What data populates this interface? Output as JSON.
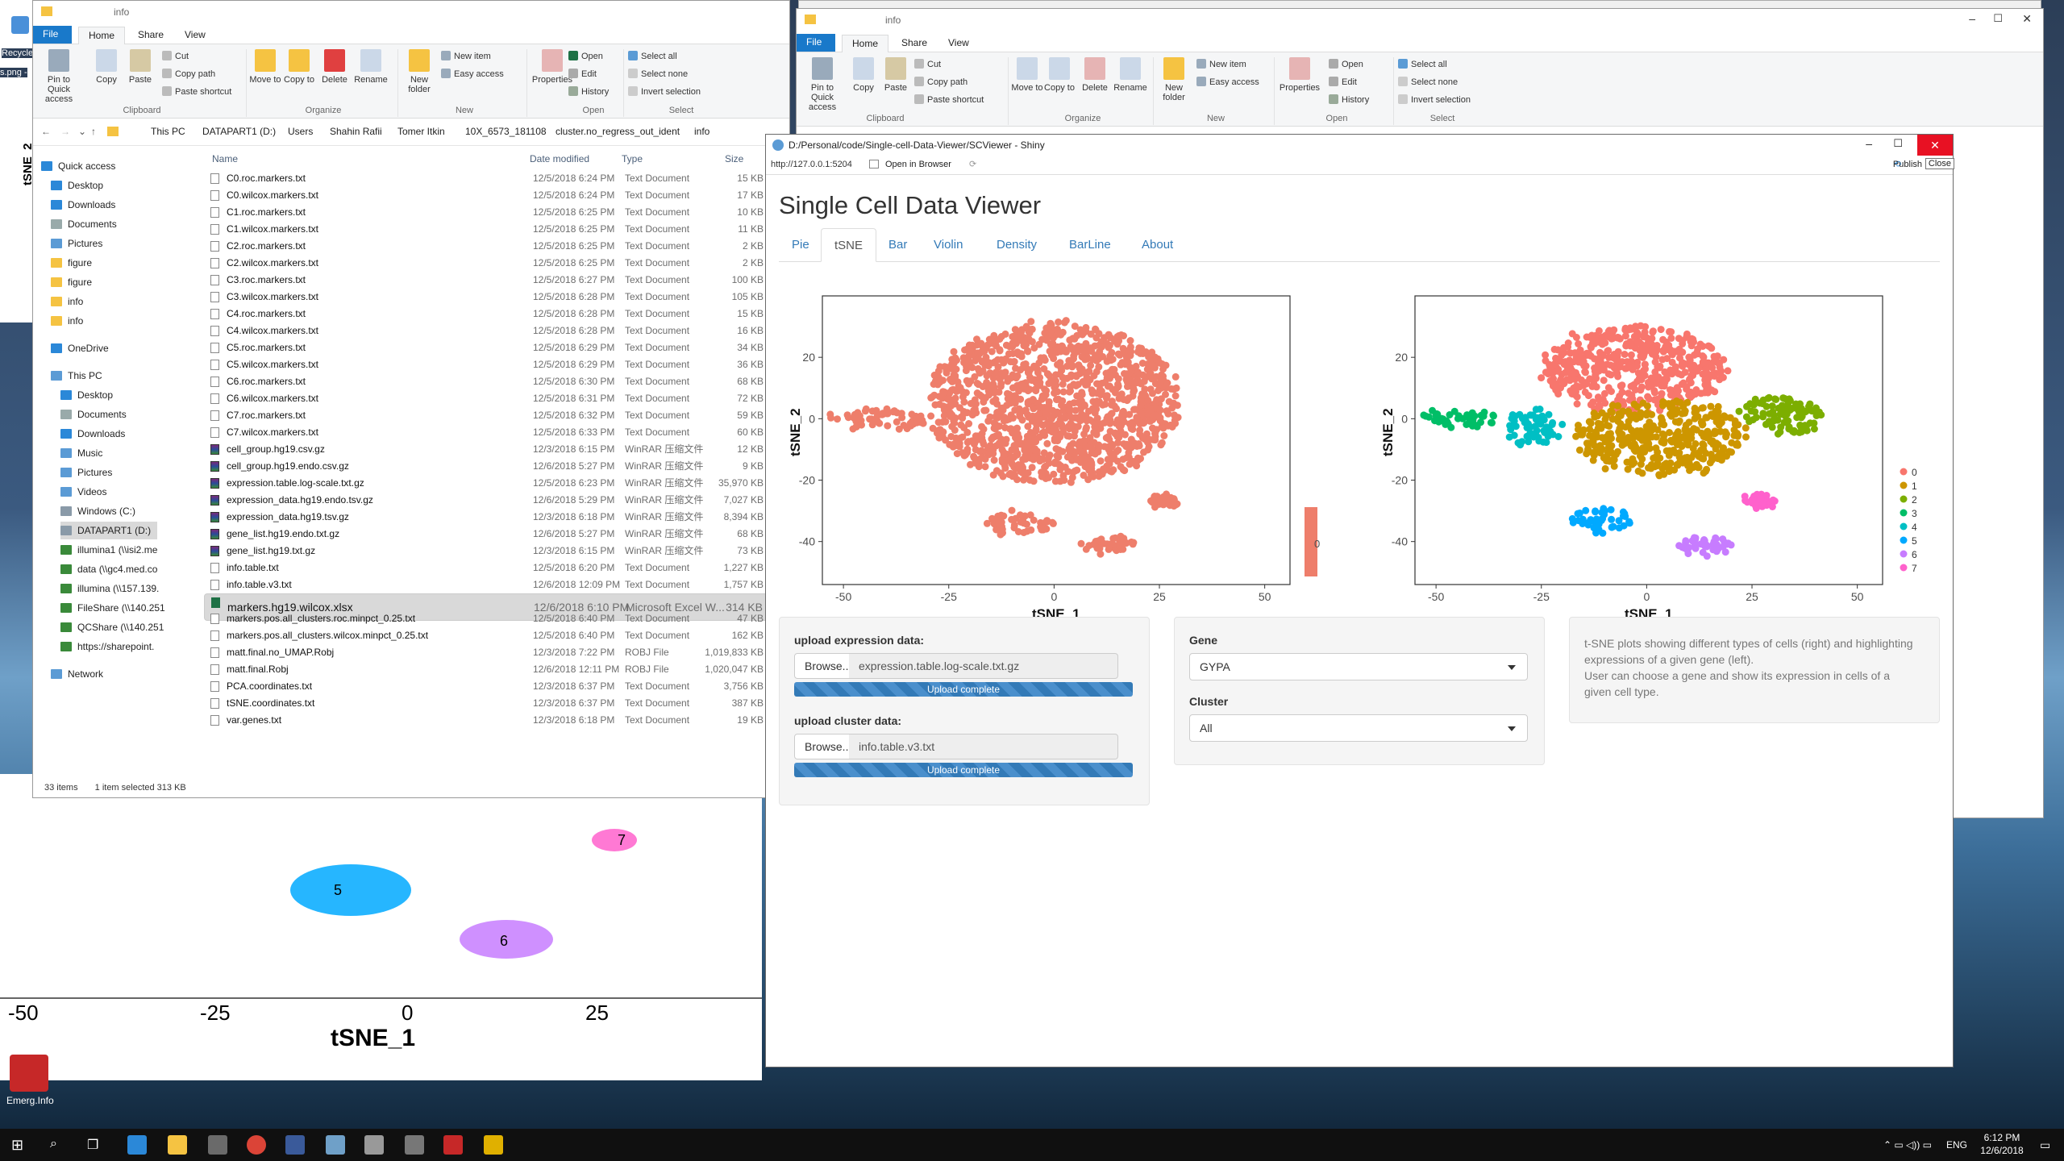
{
  "background": {
    "recycle_label": "Recycle",
    "desktop_file": "s.png -",
    "corner_app_label": "Emerg.Info",
    "bg_plot": {
      "x_ticks": [
        "-50",
        "-25",
        "0",
        "25"
      ],
      "x_label": "tSNE_1",
      "y_label": "tSNE_2",
      "cluster_labels": [
        "5",
        "6",
        "7"
      ]
    }
  },
  "explorer": {
    "title": "info",
    "tabs": {
      "file": "File",
      "home": "Home",
      "share": "Share",
      "view": "View"
    },
    "ribbon": {
      "pin": "Pin to Quick access",
      "copy": "Copy",
      "paste": "Paste",
      "cut": "Cut",
      "copy_path": "Copy path",
      "paste_shortcut": "Paste shortcut",
      "move_to": "Move to",
      "copy_to": "Copy to",
      "delete": "Delete",
      "rename": "Rename",
      "new_folder": "New folder",
      "new_item": "New item",
      "easy_access": "Easy access",
      "properties": "Properties",
      "open": "Open",
      "edit": "Edit",
      "history": "History",
      "select_all": "Select all",
      "select_none": "Select none",
      "invert_selection": "Invert selection",
      "groups": {
        "clipboard": "Clipboard",
        "organize": "Organize",
        "new": "New",
        "open": "Open",
        "select": "Select"
      }
    },
    "breadcrumb": [
      "This PC",
      "DATAPART1 (D:)",
      "Users",
      "Shahin Rafii",
      "Tomer Itkin",
      "10X_6573_181108",
      "cluster.no_regress_out_ident",
      "info"
    ],
    "nav": {
      "quick_access": "Quick access",
      "quick_items": [
        "Desktop",
        "Downloads",
        "Documents",
        "Pictures",
        "figure",
        "figure",
        "info",
        "info"
      ],
      "onedrive": "OneDrive",
      "this_pc": "This PC",
      "pc_items": [
        "Desktop",
        "Documents",
        "Downloads",
        "Music",
        "Pictures",
        "Videos",
        "Windows (C:)",
        "DATAPART1 (D:)",
        "illumina1 (\\\\isi2.me",
        "data (\\\\gc4.med.co",
        "illumina (\\\\157.139.",
        "FileShare (\\\\140.251",
        "QCShare (\\\\140.251",
        "https://sharepoint."
      ],
      "network": "Network"
    },
    "columns": {
      "name": "Name",
      "date": "Date modified",
      "type": "Type",
      "size": "Size"
    },
    "files": [
      {
        "name": "C0.roc.markers.txt",
        "date": "12/5/2018 6:24 PM",
        "type": "Text Document",
        "size": "15 KB",
        "kind": "txt"
      },
      {
        "name": "C0.wilcox.markers.txt",
        "date": "12/5/2018 6:24 PM",
        "type": "Text Document",
        "size": "17 KB",
        "kind": "txt"
      },
      {
        "name": "C1.roc.markers.txt",
        "date": "12/5/2018 6:25 PM",
        "type": "Text Document",
        "size": "10 KB",
        "kind": "txt"
      },
      {
        "name": "C1.wilcox.markers.txt",
        "date": "12/5/2018 6:25 PM",
        "type": "Text Document",
        "size": "11 KB",
        "kind": "txt"
      },
      {
        "name": "C2.roc.markers.txt",
        "date": "12/5/2018 6:25 PM",
        "type": "Text Document",
        "size": "2 KB",
        "kind": "txt"
      },
      {
        "name": "C2.wilcox.markers.txt",
        "date": "12/5/2018 6:25 PM",
        "type": "Text Document",
        "size": "2 KB",
        "kind": "txt"
      },
      {
        "name": "C3.roc.markers.txt",
        "date": "12/5/2018 6:27 PM",
        "type": "Text Document",
        "size": "100 KB",
        "kind": "txt"
      },
      {
        "name": "C3.wilcox.markers.txt",
        "date": "12/5/2018 6:28 PM",
        "type": "Text Document",
        "size": "105 KB",
        "kind": "txt"
      },
      {
        "name": "C4.roc.markers.txt",
        "date": "12/5/2018 6:28 PM",
        "type": "Text Document",
        "size": "15 KB",
        "kind": "txt"
      },
      {
        "name": "C4.wilcox.markers.txt",
        "date": "12/5/2018 6:28 PM",
        "type": "Text Document",
        "size": "16 KB",
        "kind": "txt"
      },
      {
        "name": "C5.roc.markers.txt",
        "date": "12/5/2018 6:29 PM",
        "type": "Text Document",
        "size": "34 KB",
        "kind": "txt"
      },
      {
        "name": "C5.wilcox.markers.txt",
        "date": "12/5/2018 6:29 PM",
        "type": "Text Document",
        "size": "36 KB",
        "kind": "txt"
      },
      {
        "name": "C6.roc.markers.txt",
        "date": "12/5/2018 6:30 PM",
        "type": "Text Document",
        "size": "68 KB",
        "kind": "txt"
      },
      {
        "name": "C6.wilcox.markers.txt",
        "date": "12/5/2018 6:31 PM",
        "type": "Text Document",
        "size": "72 KB",
        "kind": "txt"
      },
      {
        "name": "C7.roc.markers.txt",
        "date": "12/5/2018 6:32 PM",
        "type": "Text Document",
        "size": "59 KB",
        "kind": "txt"
      },
      {
        "name": "C7.wilcox.markers.txt",
        "date": "12/5/2018 6:33 PM",
        "type": "Text Document",
        "size": "60 KB",
        "kind": "txt"
      },
      {
        "name": "cell_group.hg19.csv.gz",
        "date": "12/3/2018 6:15 PM",
        "type": "WinRAR 压缩文件",
        "size": "12 KB",
        "kind": "rar"
      },
      {
        "name": "cell_group.hg19.endo.csv.gz",
        "date": "12/6/2018 5:27 PM",
        "type": "WinRAR 压缩文件",
        "size": "9 KB",
        "kind": "rar"
      },
      {
        "name": "expression.table.log-scale.txt.gz",
        "date": "12/5/2018 6:23 PM",
        "type": "WinRAR 压缩文件",
        "size": "35,970 KB",
        "kind": "rar"
      },
      {
        "name": "expression_data.hg19.endo.tsv.gz",
        "date": "12/6/2018 5:29 PM",
        "type": "WinRAR 压缩文件",
        "size": "7,027 KB",
        "kind": "rar"
      },
      {
        "name": "expression_data.hg19.tsv.gz",
        "date": "12/3/2018 6:18 PM",
        "type": "WinRAR 压缩文件",
        "size": "8,394 KB",
        "kind": "rar"
      },
      {
        "name": "gene_list.hg19.endo.txt.gz",
        "date": "12/6/2018 5:27 PM",
        "type": "WinRAR 压缩文件",
        "size": "68 KB",
        "kind": "rar"
      },
      {
        "name": "gene_list.hg19.txt.gz",
        "date": "12/3/2018 6:15 PM",
        "type": "WinRAR 压缩文件",
        "size": "73 KB",
        "kind": "rar"
      },
      {
        "name": "info.table.txt",
        "date": "12/5/2018 6:20 PM",
        "type": "Text Document",
        "size": "1,227 KB",
        "kind": "txt"
      },
      {
        "name": "info.table.v3.txt",
        "date": "12/6/2018 12:09 PM",
        "type": "Text Document",
        "size": "1,757 KB",
        "kind": "txt"
      },
      {
        "name": "markers.hg19.wilcox.xlsx",
        "date": "12/6/2018 6:10 PM",
        "type": "Microsoft Excel W...",
        "size": "314 KB",
        "kind": "xl",
        "selected": true
      },
      {
        "name": "markers.pos.all_clusters.roc.minpct_0.25.txt",
        "date": "12/5/2018 6:40 PM",
        "type": "Text Document",
        "size": "47 KB",
        "kind": "txt"
      },
      {
        "name": "markers.pos.all_clusters.wilcox.minpct_0.25.txt",
        "date": "12/5/2018 6:40 PM",
        "type": "Text Document",
        "size": "162 KB",
        "kind": "txt"
      },
      {
        "name": "matt.final.no_UMAP.Robj",
        "date": "12/3/2018 7:22 PM",
        "type": "ROBJ File",
        "size": "1,019,833 KB",
        "kind": "txt"
      },
      {
        "name": "matt.final.Robj",
        "date": "12/6/2018 12:11 PM",
        "type": "ROBJ File",
        "size": "1,020,047 KB",
        "kind": "txt"
      },
      {
        "name": "PCA.coordinates.txt",
        "date": "12/3/2018 6:37 PM",
        "type": "Text Document",
        "size": "3,756 KB",
        "kind": "txt"
      },
      {
        "name": "tSNE.coordinates.txt",
        "date": "12/3/2018 6:37 PM",
        "type": "Text Document",
        "size": "387 KB",
        "kind": "txt"
      },
      {
        "name": "var.genes.txt",
        "date": "12/3/2018 6:18 PM",
        "type": "Text Document",
        "size": "19 KB",
        "kind": "txt"
      }
    ],
    "status": {
      "count": "33 items",
      "selected": "1 item selected  313 KB"
    }
  },
  "explorer2": {
    "title": "info"
  },
  "shiny_window": {
    "title": "D:/Personal/code/Single-cell-Data-Viewer/SCViewer - Shiny",
    "url": "http://127.0.0.1:5204",
    "open_in_browser": "Open in Browser",
    "publish": "Publish",
    "close_tooltip": "Close"
  },
  "app": {
    "title": "Single Cell Data Viewer",
    "tabs": [
      "Pie",
      "tSNE",
      "Bar",
      "Violin",
      "Density",
      "BarLine",
      "About"
    ],
    "active_tab": "tSNE",
    "upload_expr_label": "upload expression data:",
    "browse_label": "Browse...",
    "expr_file": "expression.table.log-scale.txt.gz",
    "upload_complete": "Upload complete",
    "upload_cluster_label": "upload cluster data:",
    "cluster_file": "info.table.v3.txt",
    "gene_label": "Gene",
    "gene_value": "GYPA",
    "cluster_label": "Cluster",
    "cluster_value": "All",
    "note_lines": [
      "t-SNE plots showing different types of cells (right) and highlighting",
      "expressions of a given gene (left).",
      "User can choose a gene and show its expression in cells of a",
      "given cell type."
    ]
  },
  "chart_data": [
    {
      "type": "scatter",
      "xlabel": "tSNE_1",
      "ylabel": "tSNE_2",
      "xlim": [
        -55,
        56
      ],
      "ylim": [
        -54,
        40
      ],
      "x_ticks": [
        -50,
        -25,
        0,
        25,
        50
      ],
      "y_ticks": [
        20,
        0,
        -20,
        -40
      ],
      "legend_text": "0",
      "color": "#ee7e6b",
      "clusters": [
        {
          "name": "main",
          "cx": 0,
          "cy": 5,
          "rx": 30,
          "ry": 26
        },
        {
          "name": "left-tail",
          "cx": -42,
          "cy": 0,
          "rx": 12,
          "ry": 3
        },
        {
          "name": "bottom-left",
          "cx": -8,
          "cy": -34,
          "rx": 8,
          "ry": 3.5
        },
        {
          "name": "bottom-right",
          "cx": 13,
          "cy": -41,
          "rx": 6,
          "ry": 2.5
        },
        {
          "name": "small-right",
          "cx": 26,
          "cy": -27,
          "rx": 3,
          "ry": 1.5
        }
      ]
    },
    {
      "type": "scatter",
      "xlabel": "tSNE_1",
      "ylabel": "tSNE_2",
      "xlim": [
        -55,
        56
      ],
      "ylim": [
        -54,
        40
      ],
      "x_ticks": [
        -50,
        -25,
        0,
        25,
        50
      ],
      "y_ticks": [
        20,
        0,
        -20,
        -40
      ],
      "legend": [
        "0",
        "1",
        "2",
        "3",
        "4",
        "5",
        "6",
        "7"
      ],
      "colors": {
        "0": "#f8766d",
        "1": "#cd9600",
        "2": "#7cae00",
        "3": "#00be67",
        "4": "#00bfc4",
        "5": "#00a9ff",
        "6": "#c77cff",
        "7": "#ff61cc"
      },
      "clusters": [
        {
          "label": "0",
          "cx": -3,
          "cy": 16,
          "rx": 22,
          "ry": 14
        },
        {
          "label": "1",
          "cx": 3,
          "cy": -6,
          "rx": 20,
          "ry": 12
        },
        {
          "label": "2",
          "cx": 32,
          "cy": 1,
          "rx": 10,
          "ry": 6
        },
        {
          "label": "3",
          "cx": -43,
          "cy": 0,
          "rx": 10,
          "ry": 3
        },
        {
          "label": "4",
          "cx": -27,
          "cy": -3,
          "rx": 6,
          "ry": 6
        },
        {
          "label": "5",
          "cx": -11,
          "cy": -33,
          "rx": 7,
          "ry": 4
        },
        {
          "label": "6",
          "cx": 14,
          "cy": -41,
          "rx": 6,
          "ry": 2.5
        },
        {
          "label": "7",
          "cx": 27,
          "cy": -27,
          "rx": 4,
          "ry": 1.8
        }
      ]
    }
  ],
  "taskbar": {
    "time": "6:12 PM",
    "date": "12/6/2018",
    "lang": "ENG"
  }
}
